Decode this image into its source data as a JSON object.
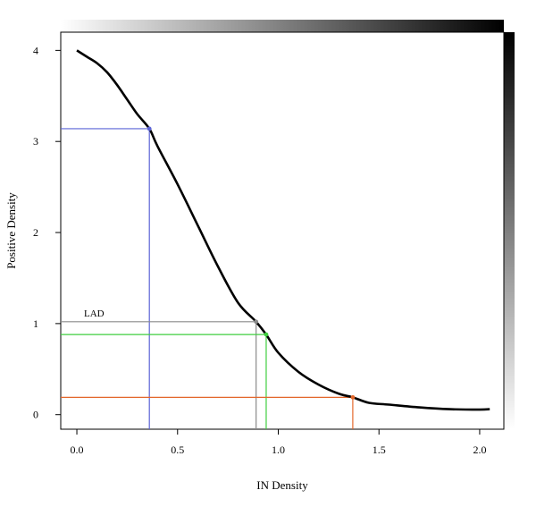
{
  "chart_data": {
    "type": "line",
    "title": "",
    "xlabel": "IN Density",
    "ylabel": "Positive Density",
    "xlim": [
      -0.08,
      2.12
    ],
    "ylim": [
      -0.16,
      4.2
    ],
    "x_ticks": [
      "0.0",
      "0.5",
      "1.0",
      "1.5",
      "2.0"
    ],
    "x_tick_values": [
      0.0,
      0.5,
      1.0,
      1.5,
      2.0
    ],
    "y_ticks": [
      "0",
      "1",
      "2",
      "3",
      "4"
    ],
    "y_tick_values": [
      0,
      1,
      2,
      3,
      4
    ],
    "grid": false,
    "series": [
      {
        "color": "#000000",
        "x": [
          0.0,
          0.05,
          0.1,
          0.15,
          0.2,
          0.25,
          0.3,
          0.36,
          0.4,
          0.5,
          0.6,
          0.7,
          0.8,
          0.89,
          0.94,
          1.0,
          1.1,
          1.2,
          1.3,
          1.37,
          1.45,
          1.55,
          1.7,
          1.85,
          2.0,
          2.05
        ],
        "y": [
          4.0,
          3.93,
          3.86,
          3.76,
          3.62,
          3.46,
          3.3,
          3.14,
          2.95,
          2.53,
          2.08,
          1.63,
          1.23,
          1.02,
          0.88,
          0.68,
          0.47,
          0.33,
          0.23,
          0.19,
          0.13,
          0.11,
          0.08,
          0.06,
          0.055,
          0.06
        ]
      }
    ],
    "reference_lines": [
      {
        "x": 0.36,
        "y": 3.14,
        "color": "#5b63d6"
      },
      {
        "x": 0.89,
        "y": 1.02,
        "color": "#8a8a8a",
        "label": "LAD"
      },
      {
        "x": 0.94,
        "y": 0.88,
        "color": "#3fce3f"
      },
      {
        "x": 1.37,
        "y": 0.19,
        "color": "#e3672a"
      }
    ],
    "decorations": {
      "top_gradient": "white-to-black (left to right)",
      "right_gradient": "black-to-white (top to bottom)"
    }
  }
}
